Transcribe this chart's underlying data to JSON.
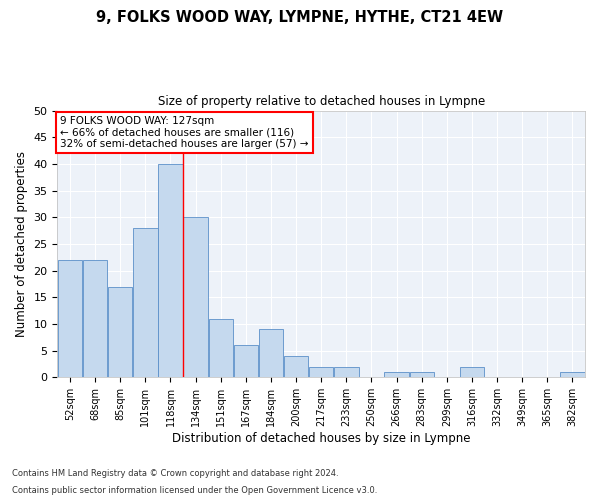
{
  "title1": "9, FOLKS WOOD WAY, LYMPNE, HYTHE, CT21 4EW",
  "title2": "Size of property relative to detached houses in Lympne",
  "xlabel": "Distribution of detached houses by size in Lympne",
  "ylabel": "Number of detached properties",
  "categories": [
    "52sqm",
    "68sqm",
    "85sqm",
    "101sqm",
    "118sqm",
    "134sqm",
    "151sqm",
    "167sqm",
    "184sqm",
    "200sqm",
    "217sqm",
    "233sqm",
    "250sqm",
    "266sqm",
    "283sqm",
    "299sqm",
    "316sqm",
    "332sqm",
    "349sqm",
    "365sqm",
    "382sqm"
  ],
  "values": [
    22,
    22,
    17,
    28,
    40,
    30,
    11,
    6,
    9,
    4,
    2,
    2,
    0,
    1,
    1,
    0,
    2,
    0,
    0,
    0,
    1
  ],
  "bar_color": "#c5d9ee",
  "bar_edge_color": "#5b8fc9",
  "ref_line_x": 4.5,
  "annotation_line1": "9 FOLKS WOOD WAY: 127sqm",
  "annotation_line2": "← 66% of detached houses are smaller (116)",
  "annotation_line3": "32% of semi-detached houses are larger (57) →",
  "box_color": "red",
  "ylim": [
    0,
    50
  ],
  "yticks": [
    0,
    5,
    10,
    15,
    20,
    25,
    30,
    35,
    40,
    45,
    50
  ],
  "footnote1": "Contains HM Land Registry data © Crown copyright and database right 2024.",
  "footnote2": "Contains public sector information licensed under the Open Government Licence v3.0.",
  "background_color": "#edf2f9",
  "grid_color": "#ffffff",
  "fig_bg": "#ffffff"
}
